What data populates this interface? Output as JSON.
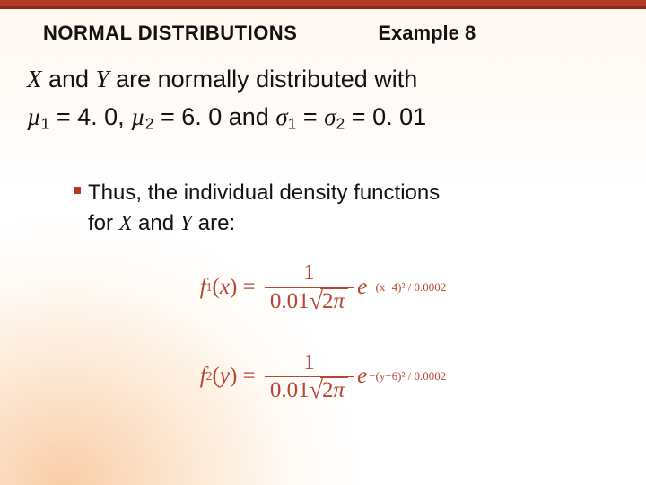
{
  "colors": {
    "accent": "#b33b24",
    "accent_dark": "#8a2a18",
    "formula": "#b8462f",
    "text": "#111111",
    "bg_warm": "#fff7ef"
  },
  "header": {
    "title": "NORMAL DISTRIBUTIONS",
    "example": "Example 8"
  },
  "statement": {
    "pre": " and ",
    "var_x": "X",
    "var_y": "Y",
    "post": " are normally distributed with",
    "mu1_label": "µ",
    "mu1_sub": "1",
    "mu1_eq": " = 4. 0, ",
    "mu2_label": "µ",
    "mu2_sub": "2",
    "mu2_eq": " = 6. 0 and ",
    "s1_label": "σ",
    "s1_sub": "1",
    "s_mid": " = ",
    "s2_label": "σ",
    "s2_sub": "2",
    "s_eq": " = 0. 01"
  },
  "bullet": {
    "line1": "Thus, the individual density functions",
    "line2_pre": "for ",
    "line2_x": "X",
    "line2_mid": " and ",
    "line2_y": "Y",
    "line2_post": " are:"
  },
  "formulas": {
    "f1": {
      "lhs_fn": "f",
      "lhs_sub": "1",
      "lhs_arg": "x",
      "numerator": "1",
      "denom_coeff": "0.01",
      "denom_two": "2",
      "denom_pi": "π",
      "exp_base": "e",
      "exp_power": "−(x−4)² / 0.0002"
    },
    "f2": {
      "lhs_fn": "f",
      "lhs_sub": "2",
      "lhs_arg": "y",
      "numerator": "1",
      "denom_coeff": "0.01",
      "denom_two": "2",
      "denom_pi": "π",
      "exp_base": "e",
      "exp_power": "−(y−6)² / 0.0002"
    }
  }
}
